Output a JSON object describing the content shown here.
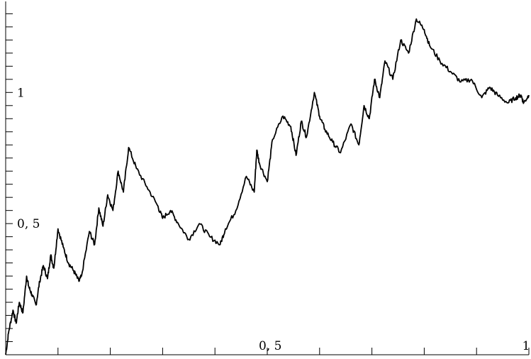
{
  "chart_data": {
    "type": "line",
    "title": "",
    "xlabel": "",
    "ylabel": "",
    "xlim": [
      0,
      1
    ],
    "ylim": [
      0,
      1.32
    ],
    "grid": false,
    "legend": "none",
    "line_color": "#000000",
    "x_tick_labels": [
      {
        "value": 0.5,
        "label": "0, 5"
      },
      {
        "value": 1,
        "label": "1"
      }
    ],
    "y_tick_labels": [
      {
        "value": 0.5,
        "label": "0, 5"
      },
      {
        "value": 1,
        "label": "1"
      }
    ],
    "x_ticks": [
      0.1,
      0.2,
      0.3,
      0.4,
      0.5,
      0.6,
      0.7,
      0.8,
      0.9,
      1.0
    ],
    "y_ticks": [
      0.05,
      0.1,
      0.15,
      0.2,
      0.25,
      0.3,
      0.35,
      0.4,
      0.45,
      0.5,
      0.55,
      0.6,
      0.65,
      0.7,
      0.75,
      0.8,
      0.85,
      0.9,
      0.95,
      1.0,
      1.05,
      1.1,
      1.15,
      1.2,
      1.25,
      1.3
    ],
    "series": [
      {
        "x": [
          0,
          0.006,
          0.014,
          0.02,
          0.026,
          0.033,
          0.04,
          0.044,
          0.05,
          0.058,
          0.065,
          0.072,
          0.08,
          0.086,
          0.092,
          0.1,
          0.11,
          0.12,
          0.13,
          0.14,
          0.145,
          0.16,
          0.17,
          0.178,
          0.186,
          0.195,
          0.205,
          0.215,
          0.225,
          0.235,
          0.25,
          0.27,
          0.29,
          0.3,
          0.315,
          0.33,
          0.35,
          0.37,
          0.39,
          0.41,
          0.42,
          0.44,
          0.46,
          0.475,
          0.48,
          0.485,
          0.5,
          0.51,
          0.53,
          0.545,
          0.555,
          0.565,
          0.575,
          0.59,
          0.6,
          0.61,
          0.625,
          0.64,
          0.66,
          0.675,
          0.685,
          0.695,
          0.705,
          0.715,
          0.725,
          0.74,
          0.755,
          0.77,
          0.785,
          0.8,
          0.81,
          0.83,
          0.85,
          0.87,
          0.89,
          0.91,
          0.925,
          0.94,
          0.96,
          0.975,
          0.985,
          0.99,
          1.0
        ],
        "y": [
          0,
          0.09,
          0.17,
          0.12,
          0.2,
          0.16,
          0.3,
          0.26,
          0.23,
          0.19,
          0.28,
          0.34,
          0.29,
          0.38,
          0.33,
          0.48,
          0.41,
          0.35,
          0.32,
          0.28,
          0.3,
          0.47,
          0.42,
          0.56,
          0.49,
          0.61,
          0.55,
          0.7,
          0.62,
          0.79,
          0.71,
          0.64,
          0.57,
          0.52,
          0.55,
          0.5,
          0.44,
          0.5,
          0.45,
          0.42,
          0.48,
          0.55,
          0.68,
          0.62,
          0.78,
          0.73,
          0.66,
          0.82,
          0.91,
          0.87,
          0.76,
          0.89,
          0.83,
          1.0,
          0.91,
          0.86,
          0.81,
          0.77,
          0.88,
          0.8,
          0.95,
          0.9,
          1.05,
          0.98,
          1.12,
          1.05,
          1.2,
          1.15,
          1.28,
          1.24,
          1.18,
          1.12,
          1.08,
          1.04,
          1.05,
          0.98,
          1.02,
          0.99,
          0.96,
          0.98,
          0.99,
          0.96,
          0.99
        ]
      }
    ]
  }
}
